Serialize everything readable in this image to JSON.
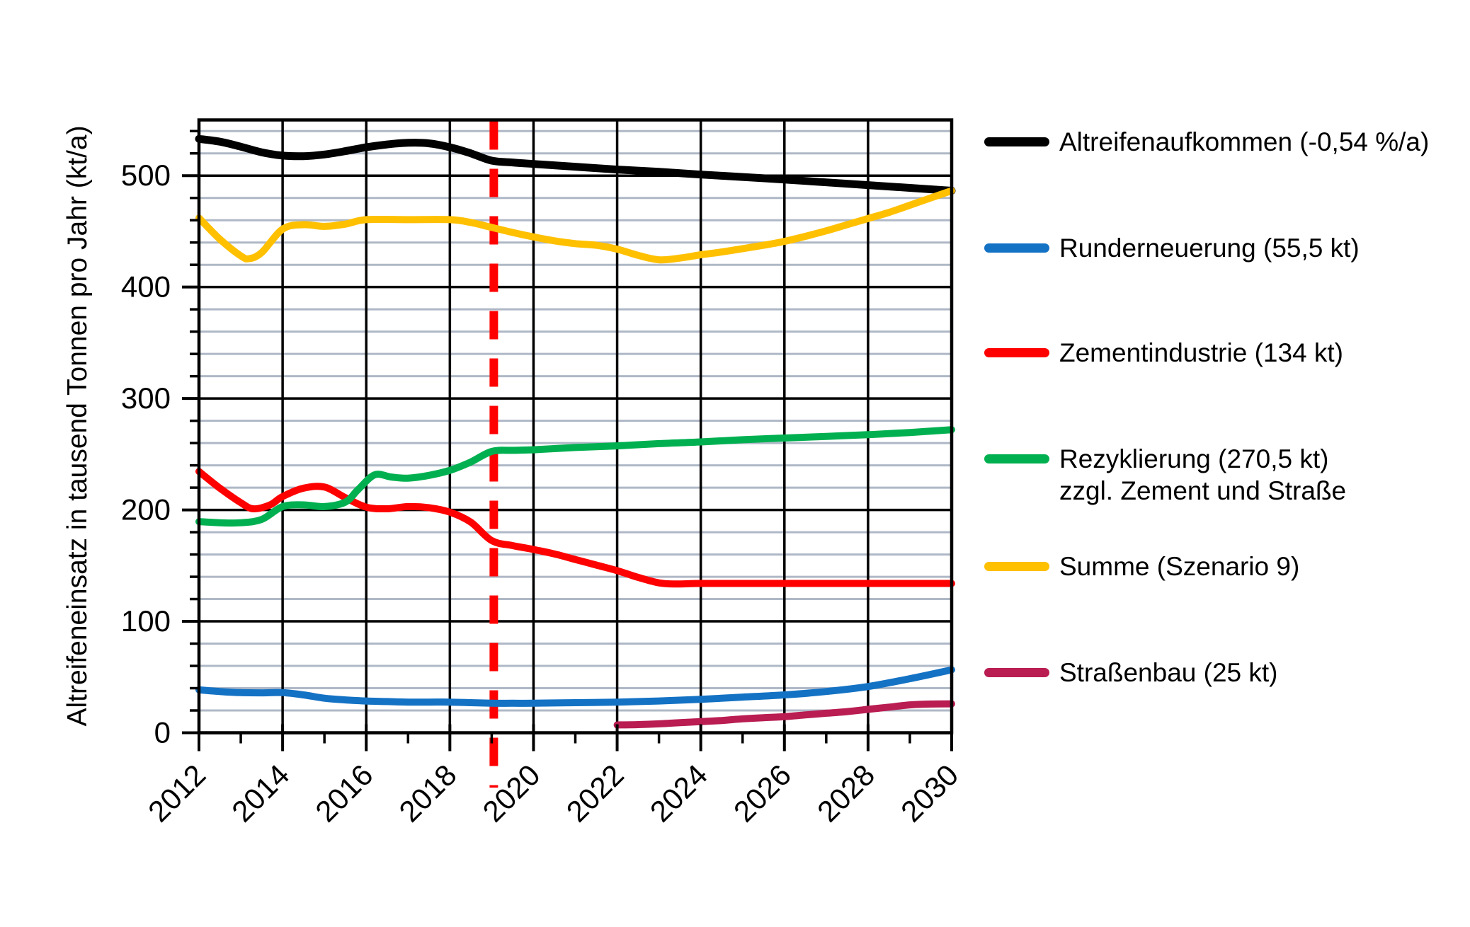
{
  "chart_data": {
    "type": "line",
    "title": "",
    "ylabel": "Altreifeneinsatz in tausend Tonnen pro Jahr (kt/a)",
    "xlabel": "",
    "x_axis": {
      "min": 2012,
      "max": 2030,
      "major_step": 2,
      "minor_step": 1,
      "tick_labels": [
        "2012",
        "2014",
        "2016",
        "2018",
        "2020",
        "2022",
        "2024",
        "2026",
        "2028",
        "2030"
      ]
    },
    "y_axis": {
      "min": 0,
      "max": 550,
      "major_step": 100,
      "minor_step": 20,
      "tick_labels": [
        "0",
        "100",
        "200",
        "300",
        "400",
        "500"
      ]
    },
    "grid": {
      "major_color": "#000000",
      "minor_color": "#AFB8C6",
      "minor_horizontal_only": true
    },
    "annotation_line": {
      "x": 2019,
      "color": "#FF0000",
      "style": "dashed",
      "label": ""
    },
    "series": [
      {
        "id": "altreifenaufkommen",
        "legend_lines": [
          "Altreifenaufkommen (-0,54 %/a)"
        ],
        "color": "#000000",
        "width": 11,
        "points": [
          [
            2012,
            533
          ],
          [
            2012.5,
            530.5
          ],
          [
            2013,
            526
          ],
          [
            2013.5,
            521
          ],
          [
            2014,
            518
          ],
          [
            2014.5,
            517.5
          ],
          [
            2015,
            519
          ],
          [
            2015.5,
            522
          ],
          [
            2016,
            525.5
          ],
          [
            2016.5,
            528
          ],
          [
            2017,
            529.5
          ],
          [
            2017.5,
            529
          ],
          [
            2018,
            525.5
          ],
          [
            2018.5,
            520
          ],
          [
            2019,
            513.5
          ],
          [
            2019.5,
            511.8
          ],
          [
            2020,
            510.5
          ],
          [
            2021,
            508
          ],
          [
            2022,
            505.5
          ],
          [
            2023,
            503.5
          ],
          [
            2024,
            501
          ],
          [
            2025,
            498.8
          ],
          [
            2026,
            496.5
          ],
          [
            2027,
            494
          ],
          [
            2028,
            491.5
          ],
          [
            2029,
            489
          ],
          [
            2030,
            486.5
          ]
        ]
      },
      {
        "id": "runderneuerung",
        "legend_lines": [
          "Runderneuerung (55,5 kt)"
        ],
        "color": "#1472C4",
        "width": 10,
        "points": [
          [
            2012,
            38.5
          ],
          [
            2012.5,
            37
          ],
          [
            2013,
            36
          ],
          [
            2013.5,
            35.8
          ],
          [
            2014,
            36
          ],
          [
            2014.5,
            34
          ],
          [
            2015,
            31
          ],
          [
            2015.5,
            29.5
          ],
          [
            2016,
            28.5
          ],
          [
            2016.5,
            28
          ],
          [
            2017,
            27.5
          ],
          [
            2017.5,
            27.5
          ],
          [
            2018,
            27.5
          ],
          [
            2018.5,
            27
          ],
          [
            2019,
            26.5
          ],
          [
            2019.5,
            26.5
          ],
          [
            2020,
            26.5
          ],
          [
            2021,
            27
          ],
          [
            2022,
            27.5
          ],
          [
            2023,
            28.5
          ],
          [
            2024,
            30
          ],
          [
            2025,
            32
          ],
          [
            2026,
            34
          ],
          [
            2027,
            37
          ],
          [
            2028,
            41.5
          ],
          [
            2029,
            48.5
          ],
          [
            2030,
            56.5
          ]
        ]
      },
      {
        "id": "zementindustrie",
        "legend_lines": [
          "Zementindustrie (134 kt)"
        ],
        "color": "#FF0000",
        "width": 10,
        "points": [
          [
            2012,
            234.5
          ],
          [
            2012.5,
            219.5
          ],
          [
            2013,
            206.5
          ],
          [
            2013.3,
            201
          ],
          [
            2013.7,
            204.5
          ],
          [
            2014,
            212
          ],
          [
            2014.5,
            219.5
          ],
          [
            2015,
            220.5
          ],
          [
            2015.5,
            211
          ],
          [
            2016,
            202.5
          ],
          [
            2016.5,
            201
          ],
          [
            2017,
            203
          ],
          [
            2017.5,
            202
          ],
          [
            2018,
            198
          ],
          [
            2018.5,
            189
          ],
          [
            2019,
            172.5
          ],
          [
            2019.5,
            168
          ],
          [
            2020,
            164.5
          ],
          [
            2020.5,
            160.5
          ],
          [
            2021,
            155.5
          ],
          [
            2021.5,
            150.5
          ],
          [
            2022,
            145.5
          ],
          [
            2022.5,
            139.5
          ],
          [
            2023,
            134.5
          ],
          [
            2023.4,
            133.5
          ],
          [
            2024,
            134
          ],
          [
            2025,
            134
          ],
          [
            2026,
            134
          ],
          [
            2027,
            134
          ],
          [
            2028,
            134
          ],
          [
            2029,
            134
          ],
          [
            2030,
            134
          ]
        ]
      },
      {
        "id": "rezyklierung",
        "legend_lines": [
          "Rezyklierung (270,5 kt)",
          "zzgl. Zement und Straße"
        ],
        "color": "#00B050",
        "width": 10,
        "points": [
          [
            2012,
            189.5
          ],
          [
            2012.5,
            188.5
          ],
          [
            2013,
            188.5
          ],
          [
            2013.5,
            191.5
          ],
          [
            2014,
            203
          ],
          [
            2014.5,
            204.5
          ],
          [
            2015,
            203
          ],
          [
            2015.5,
            207
          ],
          [
            2015.8,
            218
          ],
          [
            2016.2,
            231.5
          ],
          [
            2016.6,
            229.5
          ],
          [
            2017,
            228.5
          ],
          [
            2017.5,
            231
          ],
          [
            2018,
            235.5
          ],
          [
            2018.5,
            243
          ],
          [
            2019,
            252.5
          ],
          [
            2019.5,
            253.5
          ],
          [
            2020,
            254
          ],
          [
            2021,
            256
          ],
          [
            2022,
            257.5
          ],
          [
            2023,
            259.5
          ],
          [
            2024,
            261
          ],
          [
            2025,
            263
          ],
          [
            2026,
            264.5
          ],
          [
            2027,
            266
          ],
          [
            2028,
            267.5
          ],
          [
            2029,
            269.5
          ],
          [
            2030,
            272
          ]
        ]
      },
      {
        "id": "summe",
        "legend_lines": [
          "Summe (Szenario 9)"
        ],
        "color": "#FFC000",
        "width": 10,
        "points": [
          [
            2012,
            462
          ],
          [
            2012.5,
            443
          ],
          [
            2013,
            428
          ],
          [
            2013.2,
            425.5
          ],
          [
            2013.5,
            431
          ],
          [
            2014,
            452
          ],
          [
            2014.5,
            456
          ],
          [
            2015,
            454.5
          ],
          [
            2015.5,
            456.5
          ],
          [
            2016,
            460.5
          ],
          [
            2017,
            460.5
          ],
          [
            2018,
            460.5
          ],
          [
            2018.5,
            458
          ],
          [
            2019,
            453.5
          ],
          [
            2019.5,
            449
          ],
          [
            2020,
            445
          ],
          [
            2020.5,
            441.5
          ],
          [
            2021,
            439
          ],
          [
            2021.5,
            437.5
          ],
          [
            2022,
            434
          ],
          [
            2022.5,
            428.5
          ],
          [
            2023,
            424.5
          ],
          [
            2023.5,
            426
          ],
          [
            2024,
            429
          ],
          [
            2024.5,
            431.5
          ],
          [
            2025,
            434.5
          ],
          [
            2025.5,
            437.5
          ],
          [
            2026,
            441
          ],
          [
            2026.5,
            445.5
          ],
          [
            2027,
            450.5
          ],
          [
            2027.5,
            456
          ],
          [
            2028,
            461.5
          ],
          [
            2028.5,
            467
          ],
          [
            2029,
            473.5
          ],
          [
            2029.5,
            480
          ],
          [
            2030,
            486.5
          ]
        ]
      },
      {
        "id": "strassenbau",
        "legend_lines": [
          "Straßenbau (25 kt)"
        ],
        "color": "#B91D52",
        "width": 10,
        "points": [
          [
            2022,
            7
          ],
          [
            2022.5,
            7.3
          ],
          [
            2023,
            8
          ],
          [
            2023.5,
            9
          ],
          [
            2024,
            10
          ],
          [
            2024.5,
            11
          ],
          [
            2025,
            12.5
          ],
          [
            2025.5,
            13.5
          ],
          [
            2026,
            14.5
          ],
          [
            2026.5,
            16
          ],
          [
            2027,
            17.5
          ],
          [
            2027.5,
            19
          ],
          [
            2028,
            21
          ],
          [
            2028.5,
            23
          ],
          [
            2029,
            25
          ],
          [
            2029.5,
            25.8
          ],
          [
            2030,
            26
          ]
        ]
      }
    ]
  }
}
